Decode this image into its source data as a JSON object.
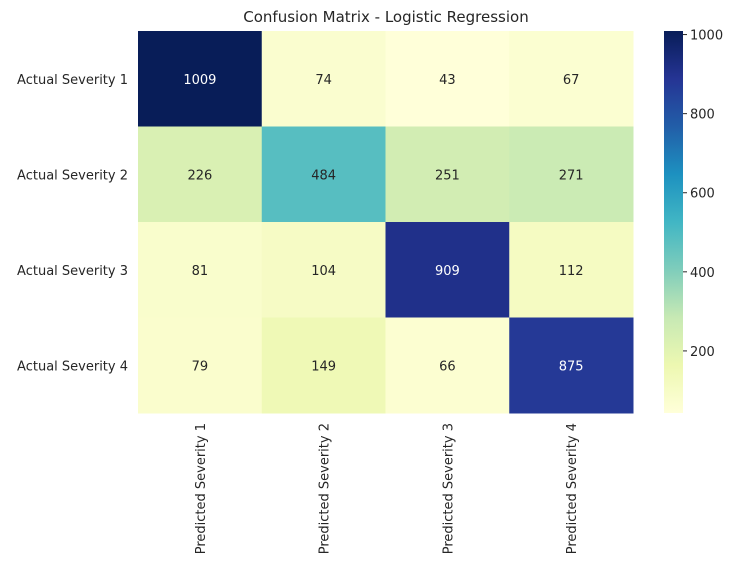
{
  "chart_data": {
    "type": "heatmap",
    "title": "Confusion Matrix - Logistic Regression",
    "xlabel": "",
    "ylabel": "",
    "x_categories": [
      "Predicted Severity 1",
      "Predicted Severity 2",
      "Predicted Severity 3",
      "Predicted Severity 4"
    ],
    "y_categories": [
      "Actual Severity 1",
      "Actual Severity 2",
      "Actual Severity 3",
      "Actual Severity 4"
    ],
    "values": [
      [
        1009,
        74,
        43,
        67
      ],
      [
        226,
        484,
        251,
        271
      ],
      [
        81,
        104,
        909,
        112
      ],
      [
        79,
        149,
        66,
        875
      ]
    ],
    "colormap": "YlGnBu",
    "colormap_stops": [
      "#ffffd9",
      "#edf8b1",
      "#c7e9b4",
      "#7fcdbb",
      "#41b6c4",
      "#1d91c0",
      "#225ea8",
      "#253494",
      "#081d58"
    ],
    "colorbar": {
      "range": [
        43,
        1009
      ],
      "ticks": [
        200,
        400,
        600,
        800,
        1000
      ],
      "tick_labels": [
        "200",
        "400",
        "600",
        "800",
        "1000"
      ]
    },
    "annotation_colors": {
      "light": "#ffffff",
      "dark": "#262626"
    },
    "grid": false
  }
}
